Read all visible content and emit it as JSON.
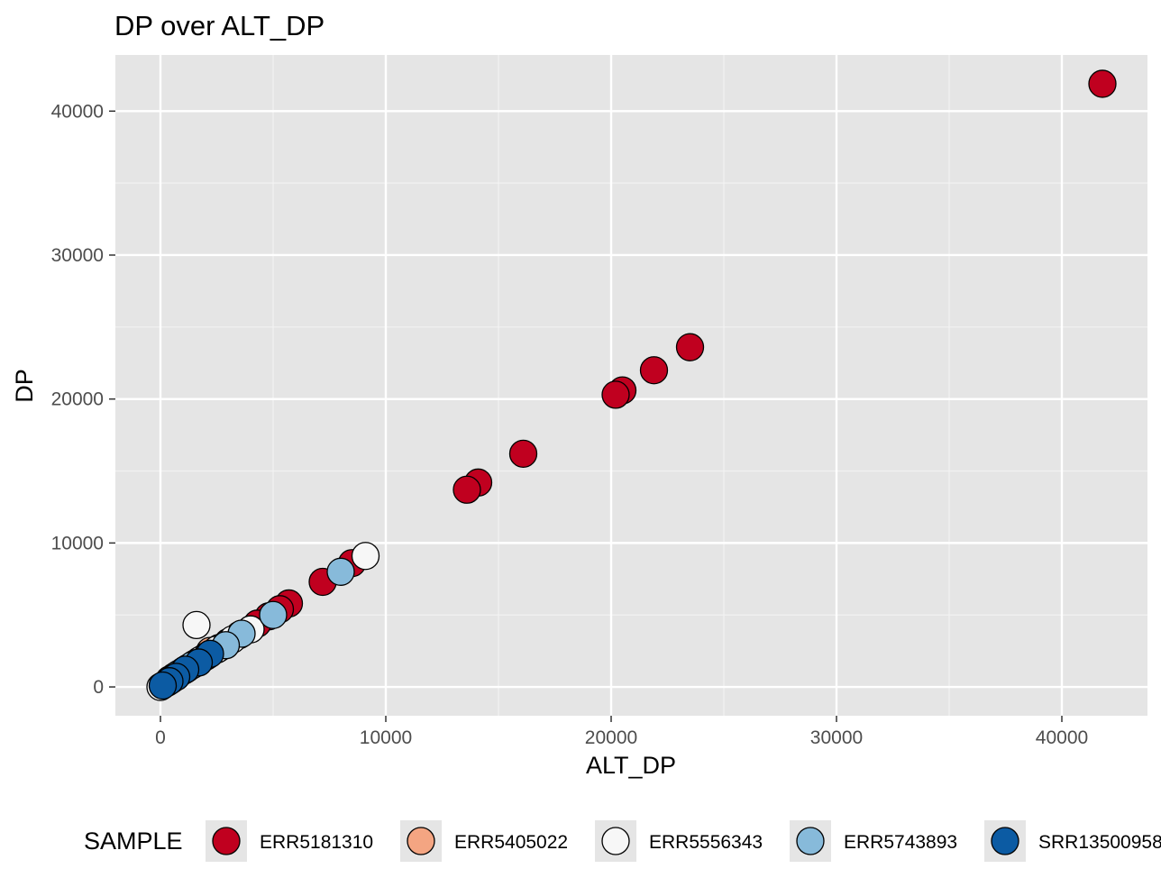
{
  "chart_data": {
    "type": "scatter",
    "title": "DP over ALT_DP",
    "xlabel": "ALT_DP",
    "ylabel": "DP",
    "xlim": [
      -2000,
      43800
    ],
    "ylim": [
      -2000,
      43900
    ],
    "xticks": [
      0,
      10000,
      20000,
      30000,
      40000
    ],
    "yticks": [
      0,
      10000,
      20000,
      30000,
      40000
    ],
    "xtick_labels": [
      "0",
      "10000",
      "20000",
      "30000",
      "40000"
    ],
    "ytick_labels": [
      "0",
      "10000",
      "20000",
      "30000",
      "40000"
    ],
    "grid": true,
    "legend": {
      "title": "SAMPLE",
      "position": "bottom"
    },
    "series": [
      {
        "name": "ERR5181310",
        "color": "#c0001f",
        "points": [
          {
            "x": 41800,
            "y": 41900
          },
          {
            "x": 23500,
            "y": 23600
          },
          {
            "x": 21900,
            "y": 22000
          },
          {
            "x": 20500,
            "y": 20600
          },
          {
            "x": 20200,
            "y": 20300
          },
          {
            "x": 16100,
            "y": 16200
          },
          {
            "x": 14100,
            "y": 14200
          },
          {
            "x": 13600,
            "y": 13700
          },
          {
            "x": 8500,
            "y": 8600
          },
          {
            "x": 7200,
            "y": 7300
          },
          {
            "x": 5700,
            "y": 5800
          },
          {
            "x": 5300,
            "y": 5400
          },
          {
            "x": 4800,
            "y": 4900
          },
          {
            "x": 4300,
            "y": 4400
          },
          {
            "x": 3500,
            "y": 3600
          },
          {
            "x": 3000,
            "y": 3100
          },
          {
            "x": 2600,
            "y": 2700
          },
          {
            "x": 2000,
            "y": 2100
          },
          {
            "x": 1500,
            "y": 1600
          },
          {
            "x": 1000,
            "y": 1100
          },
          {
            "x": 600,
            "y": 700
          },
          {
            "x": 300,
            "y": 300
          }
        ]
      },
      {
        "name": "ERR5405022",
        "color": "#f4a582",
        "points": [
          {
            "x": 2200,
            "y": 2500
          },
          {
            "x": 1700,
            "y": 1800
          },
          {
            "x": 1200,
            "y": 1300
          },
          {
            "x": 800,
            "y": 900
          },
          {
            "x": 400,
            "y": 500
          }
        ]
      },
      {
        "name": "ERR5556343",
        "color": "#f7f7f7",
        "points": [
          {
            "x": 9100,
            "y": 9100
          },
          {
            "x": 1600,
            "y": 4300
          },
          {
            "x": 4000,
            "y": 4000
          },
          {
            "x": 3200,
            "y": 3300
          },
          {
            "x": 2500,
            "y": 2600
          },
          {
            "x": 1800,
            "y": 1900
          },
          {
            "x": 1100,
            "y": 1200
          },
          {
            "x": 500,
            "y": 500
          },
          {
            "x": 0,
            "y": 0
          }
        ]
      },
      {
        "name": "ERR5743893",
        "color": "#87bada",
        "points": [
          {
            "x": 8000,
            "y": 8000
          },
          {
            "x": 5000,
            "y": 5000
          },
          {
            "x": 3600,
            "y": 3700
          },
          {
            "x": 2900,
            "y": 2900
          },
          {
            "x": 2100,
            "y": 2200
          },
          {
            "x": 1400,
            "y": 1500
          },
          {
            "x": 700,
            "y": 800
          }
        ]
      },
      {
        "name": "SRR13500958",
        "color": "#0c5ba3",
        "points": [
          {
            "x": 2200,
            "y": 2300
          },
          {
            "x": 1700,
            "y": 1700
          },
          {
            "x": 1100,
            "y": 1200
          },
          {
            "x": 700,
            "y": 700
          },
          {
            "x": 400,
            "y": 400
          },
          {
            "x": 100,
            "y": 100
          }
        ]
      }
    ]
  }
}
